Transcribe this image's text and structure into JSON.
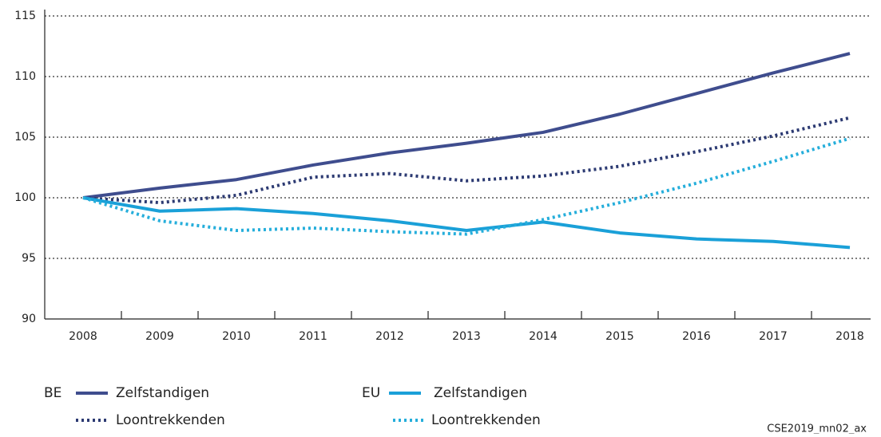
{
  "chart_data": {
    "type": "line",
    "categories": [
      "2008",
      "2009",
      "2010",
      "2011",
      "2012",
      "2013",
      "2014",
      "2015",
      "2016",
      "2017",
      "2018"
    ],
    "ylim": [
      90,
      115
    ],
    "yticks": [
      90,
      95,
      100,
      105,
      110,
      115
    ],
    "grid": true,
    "groups": [
      {
        "name": "BE",
        "series": [
          {
            "name": "Zelfstandigen",
            "color": "#3f4d8e",
            "style": "solid",
            "values": [
              100,
              100.8,
              101.5,
              102.7,
              103.7,
              104.5,
              105.4,
              106.9,
              108.6,
              110.3,
              111.9
            ]
          },
          {
            "name": "Loontrekkenden",
            "color": "#2c3a72",
            "style": "dotted",
            "values": [
              100,
              99.6,
              100.2,
              101.7,
              102.0,
              101.4,
              101.8,
              102.6,
              103.8,
              105.1,
              106.6
            ]
          }
        ]
      },
      {
        "name": "EU",
        "series": [
          {
            "name": "Zelfstandigen",
            "color": "#1aa0d8",
            "style": "solid",
            "values": [
              100,
              98.9,
              99.1,
              98.7,
              98.1,
              97.3,
              98.0,
              97.1,
              96.6,
              96.4,
              95.9
            ]
          },
          {
            "name": "Loontrekkenden",
            "color": "#25aedb",
            "style": "dotted",
            "values": [
              100,
              98.1,
              97.3,
              97.5,
              97.2,
              97.0,
              98.2,
              99.6,
              101.2,
              103.0,
              104.9
            ]
          }
        ]
      }
    ],
    "note": "CSE2019_mn02_ax"
  }
}
